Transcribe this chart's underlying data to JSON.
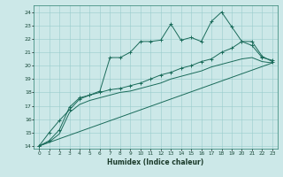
{
  "xlabel": "Humidex (Indice chaleur)",
  "bg_color": "#cce8e8",
  "grid_color": "#99cccc",
  "line_color": "#1a6b5a",
  "xlim": [
    -0.5,
    23.5
  ],
  "ylim": [
    13.8,
    24.5
  ],
  "xticks": [
    0,
    1,
    2,
    3,
    4,
    5,
    6,
    7,
    8,
    9,
    10,
    11,
    12,
    13,
    14,
    15,
    16,
    17,
    18,
    19,
    20,
    21,
    22,
    23
  ],
  "yticks": [
    14,
    15,
    16,
    17,
    18,
    19,
    20,
    21,
    22,
    23,
    24
  ],
  "line1_x": [
    0,
    1,
    2,
    3,
    4,
    5,
    6,
    7,
    8,
    9,
    10,
    11,
    12,
    13,
    14,
    15,
    16,
    17,
    18,
    19,
    20,
    21,
    22,
    23
  ],
  "line1_y": [
    14.0,
    15.0,
    15.9,
    16.7,
    17.5,
    17.8,
    18.1,
    20.6,
    20.6,
    21.0,
    21.8,
    21.8,
    21.9,
    23.1,
    21.9,
    22.1,
    21.8,
    23.3,
    24.0,
    22.9,
    21.8,
    21.5,
    20.6,
    20.4
  ],
  "line2_x": [
    0,
    1,
    2,
    3,
    4,
    5,
    6,
    7,
    8,
    9,
    10,
    11,
    12,
    13,
    14,
    15,
    16,
    17,
    18,
    19,
    20,
    21,
    22,
    23
  ],
  "line2_y": [
    14.0,
    14.4,
    15.2,
    16.9,
    17.6,
    17.8,
    18.0,
    18.2,
    18.3,
    18.5,
    18.7,
    19.0,
    19.3,
    19.5,
    19.8,
    20.0,
    20.3,
    20.5,
    21.0,
    21.3,
    21.8,
    21.8,
    20.7,
    20.3
  ],
  "line3_x": [
    0,
    1,
    2,
    3,
    4,
    5,
    6,
    7,
    8,
    9,
    10,
    11,
    12,
    13,
    14,
    15,
    16,
    17,
    18,
    19,
    20,
    21,
    22,
    23
  ],
  "line3_y": [
    14.0,
    14.3,
    14.9,
    16.5,
    17.1,
    17.4,
    17.6,
    17.8,
    18.0,
    18.1,
    18.3,
    18.5,
    18.7,
    19.0,
    19.2,
    19.4,
    19.6,
    19.9,
    20.1,
    20.3,
    20.5,
    20.6,
    20.3,
    20.2
  ],
  "line4_x": [
    0,
    23
  ],
  "line4_y": [
    14.0,
    20.2
  ]
}
